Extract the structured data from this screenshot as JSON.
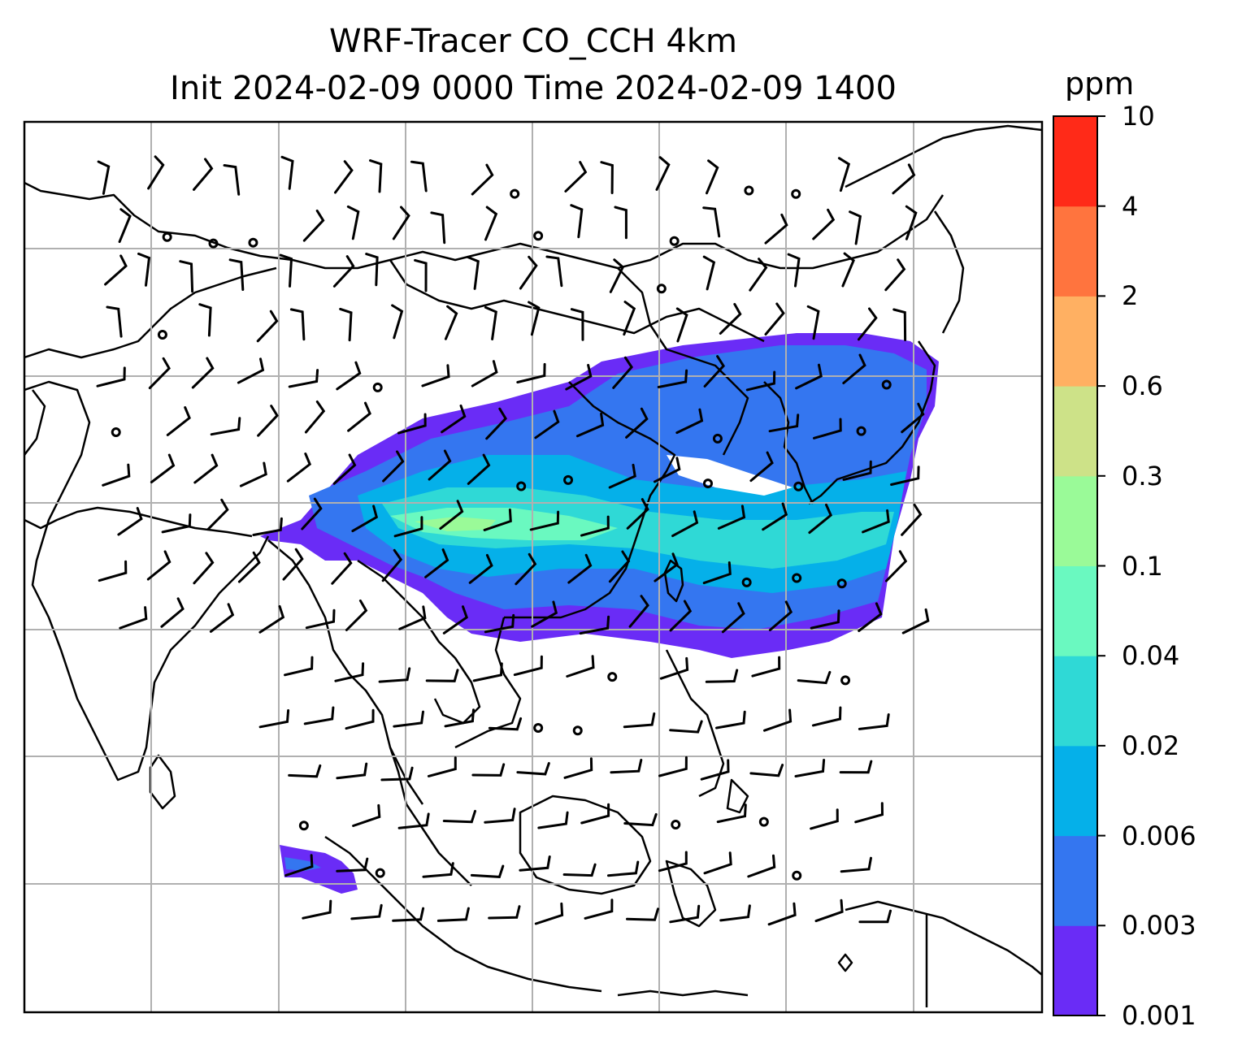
{
  "title": {
    "line1": "WRF-Tracer CO_CCH 4km",
    "line2": "Init 2024-02-09 0000 Time 2024-02-09 1400"
  },
  "colorbar": {
    "unit": "ppm",
    "levels": [
      "0.001",
      "0.003",
      "0.006",
      "0.02",
      "0.04",
      "0.1",
      "0.3",
      "0.6",
      "2",
      "4",
      "10"
    ],
    "colors": [
      "#6a2cf6",
      "#3476f0",
      "#05b0e9",
      "#2fd9d6",
      "#6af9c0",
      "#9afa98",
      "#cde288",
      "#ffb062",
      "#ff743e",
      "#ff2a18"
    ]
  },
  "plume": {
    "layers": [
      {
        "level": "0.001",
        "color": "#6a2cf6"
      },
      {
        "level": "0.003",
        "color": "#3476f0"
      },
      {
        "level": "0.006",
        "color": "#05b0e9"
      },
      {
        "level": "0.02",
        "color": "#2fd9d6"
      },
      {
        "level": "0.04",
        "color": "#6af9c0"
      },
      {
        "level": "0.1",
        "color": "#9afa98"
      }
    ]
  },
  "map": {
    "gridlines": true,
    "gridline_color": "#b0b0b0",
    "coastline_color": "#000000",
    "wind_barb_color": "#000000"
  }
}
